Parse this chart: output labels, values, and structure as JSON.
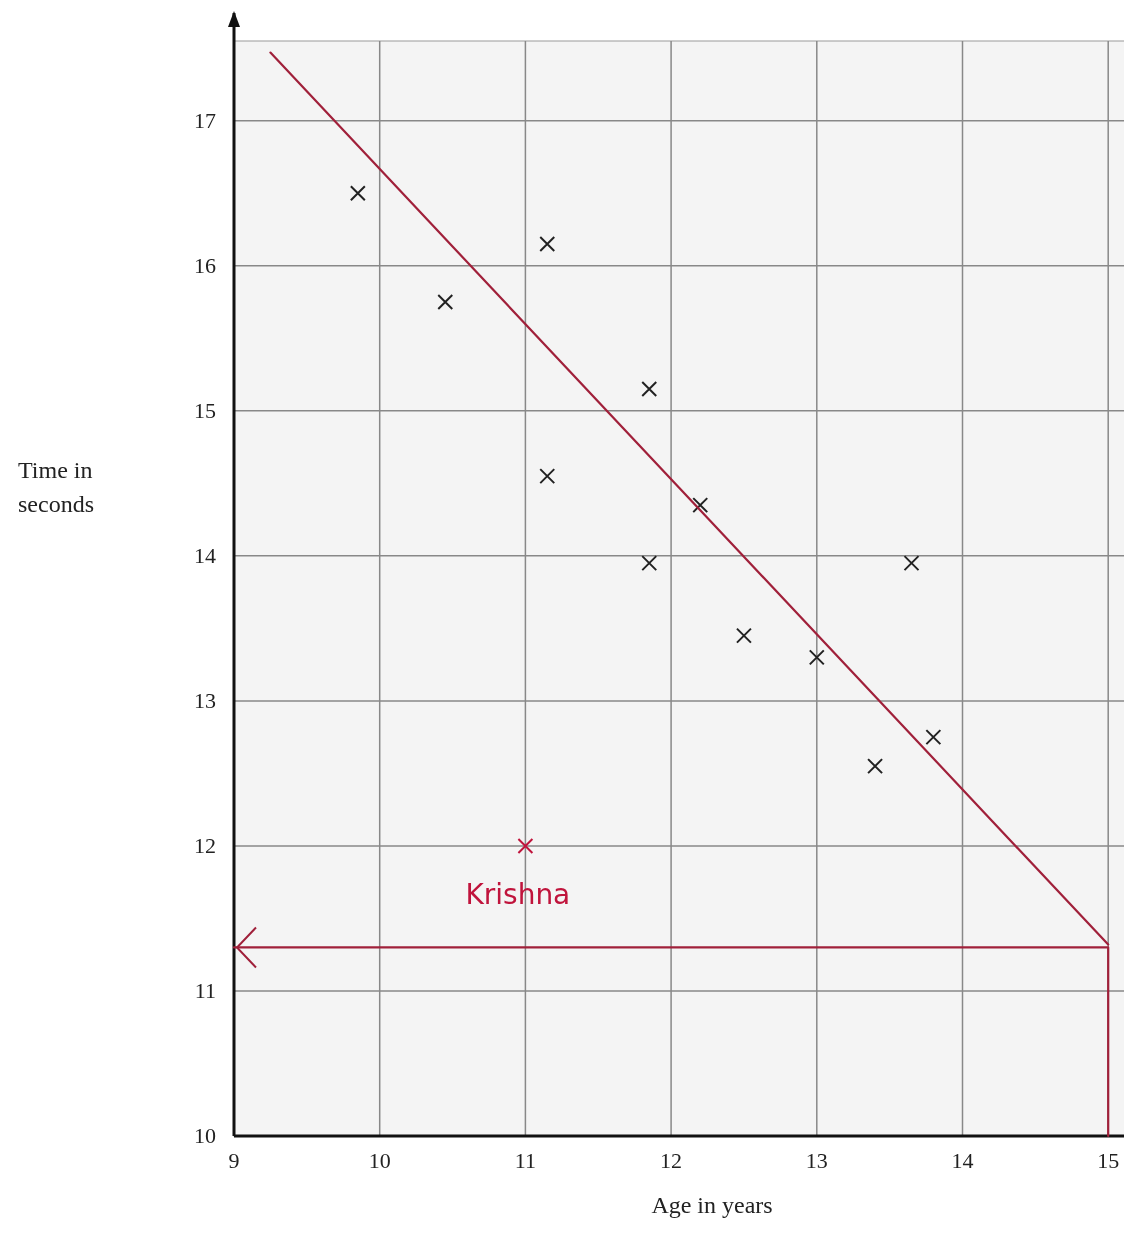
{
  "chart_data": {
    "type": "scatter",
    "xlabel": "Age in years",
    "ylabel": "Time in seconds",
    "xlim": [
      9,
      15.15
    ],
    "ylim": [
      10,
      17.55
    ],
    "xticks": [
      9,
      10,
      11,
      12,
      13,
      14,
      15
    ],
    "yticks": [
      10,
      11,
      12,
      13,
      14,
      15,
      16,
      17
    ],
    "grid": true,
    "marker": "cross",
    "series": [
      {
        "type": "scatter",
        "color": "#222222",
        "x": [
          9.85,
          10.45,
          11.15,
          11.15,
          11.85,
          11.85,
          12.2,
          12.5,
          13.0,
          13.65,
          13.4,
          13.8
        ],
        "values": [
          16.5,
          15.75,
          16.15,
          14.55,
          15.15,
          13.95,
          14.35,
          13.45,
          13.3,
          13.95,
          12.55,
          12.75
        ]
      },
      {
        "type": "scatter",
        "name": "Krishna",
        "color": "#c0143c",
        "x": [
          11
        ],
        "values": [
          12
        ]
      },
      {
        "type": "line",
        "color": "#a0203a",
        "marker": "none",
        "x": [
          9.25,
          15
        ],
        "values": [
          17.47,
          11.32
        ]
      },
      {
        "type": "line",
        "color": "#a0203a",
        "marker": "none",
        "x": [
          9,
          15,
          15
        ],
        "values": [
          11.3,
          11.3,
          10
        ]
      }
    ]
  }
}
